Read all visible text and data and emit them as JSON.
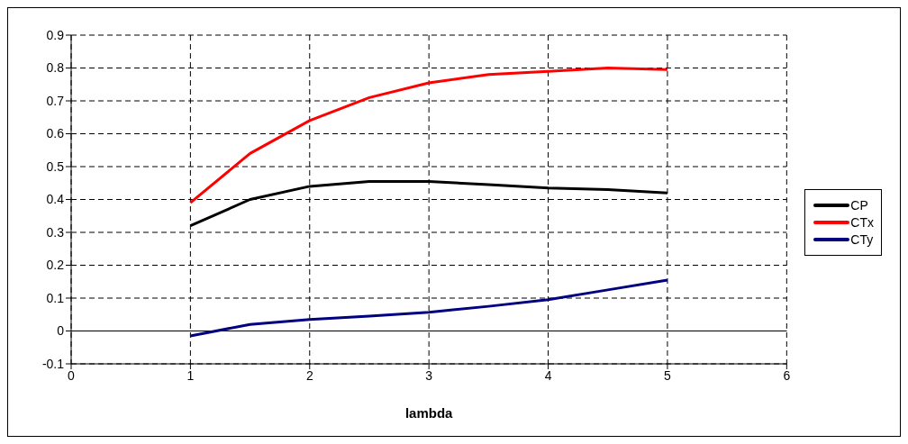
{
  "chart_data": {
    "type": "line",
    "xlabel": "lambda",
    "x": [
      1,
      1.5,
      2,
      2.5,
      3,
      3.5,
      4,
      4.5,
      5
    ],
    "series": [
      {
        "name": "CP",
        "color": "#000000",
        "values": [
          0.32,
          0.4,
          0.44,
          0.455,
          0.455,
          0.445,
          0.435,
          0.43,
          0.42
        ]
      },
      {
        "name": "CTx",
        "color": "#ff0000",
        "values": [
          0.39,
          0.54,
          0.64,
          0.71,
          0.755,
          0.78,
          0.79,
          0.8,
          0.795
        ]
      },
      {
        "name": "CTy",
        "color": "#000080",
        "values": [
          -0.015,
          0.02,
          0.035,
          0.045,
          0.057,
          0.075,
          0.095,
          0.125,
          0.155
        ]
      }
    ],
    "xlim": [
      0,
      6
    ],
    "xticks": [
      0,
      1,
      2,
      3,
      4,
      5,
      6
    ],
    "ylim": [
      -0.1,
      0.9
    ],
    "yticks": [
      -0.1,
      0,
      0.1,
      0.2,
      0.3,
      0.4,
      0.5,
      0.6,
      0.7,
      0.8,
      0.9
    ],
    "grid": true,
    "legend": "right",
    "marker": "none",
    "line_style": "solid"
  }
}
